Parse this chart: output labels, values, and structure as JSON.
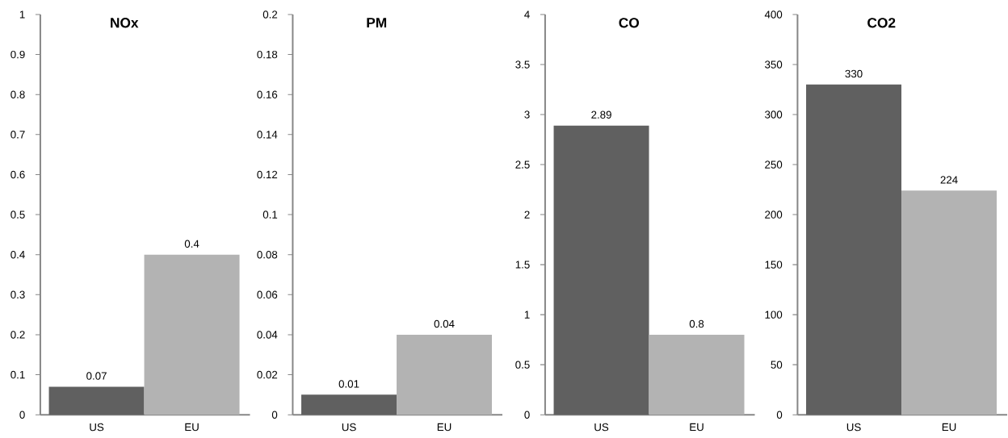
{
  "chart_data": [
    {
      "type": "bar",
      "title": "NOx",
      "categories": [
        "US",
        "EU"
      ],
      "values": [
        0.07,
        0.4
      ],
      "colors": [
        "#606060",
        "#b3b3b3"
      ],
      "ylim": [
        0,
        1
      ],
      "yticks": [
        0,
        0.1,
        0.2,
        0.3,
        0.4,
        0.5,
        0.6,
        0.7,
        0.8,
        0.9,
        1
      ],
      "data_labels": true
    },
    {
      "type": "bar",
      "title": "PM",
      "categories": [
        "US",
        "EU"
      ],
      "values": [
        0.01,
        0.04
      ],
      "colors": [
        "#606060",
        "#b3b3b3"
      ],
      "ylim": [
        0,
        0.2
      ],
      "yticks": [
        0,
        0.02,
        0.04,
        0.06,
        0.08,
        0.1,
        0.12,
        0.14,
        0.16,
        0.18,
        0.2
      ],
      "data_labels": true
    },
    {
      "type": "bar",
      "title": "CO",
      "categories": [
        "US",
        "EU"
      ],
      "values": [
        2.89,
        0.8
      ],
      "colors": [
        "#606060",
        "#b3b3b3"
      ],
      "ylim": [
        0,
        4
      ],
      "yticks": [
        0,
        0.5,
        1,
        1.5,
        2,
        2.5,
        3,
        3.5,
        4
      ],
      "data_labels": true
    },
    {
      "type": "bar",
      "title": "CO2",
      "categories": [
        "US",
        "EU"
      ],
      "values": [
        330,
        224
      ],
      "colors": [
        "#606060",
        "#b3b3b3"
      ],
      "ylim": [
        0,
        400
      ],
      "yticks": [
        0,
        50,
        100,
        150,
        200,
        250,
        300,
        350,
        400
      ],
      "data_labels": true
    }
  ]
}
